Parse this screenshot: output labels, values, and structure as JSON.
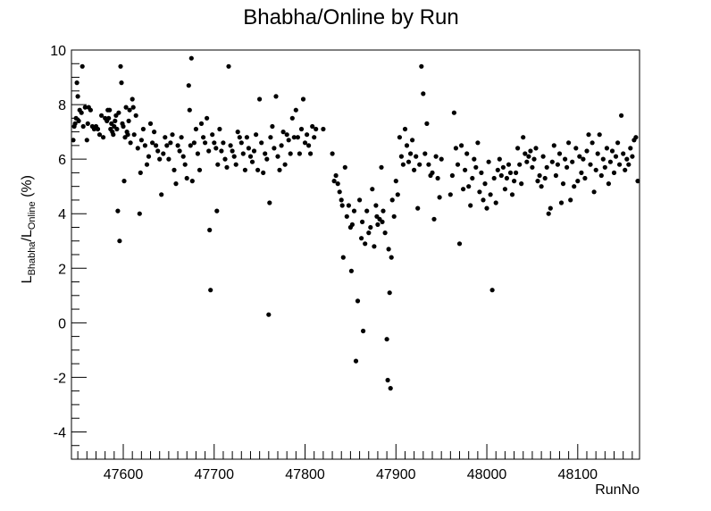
{
  "chart_data": {
    "type": "scatter",
    "title": "Bhabha/Online by Run",
    "xlabel": "RunNo",
    "ylabel": {
      "prefix": "L",
      "sub1": "Bhabha",
      "mid": "/L",
      "sub2": "Online",
      "suffix": " (%)"
    },
    "xlim": [
      47543,
      48168
    ],
    "ylim": [
      -5,
      10
    ],
    "x_ticks": [
      47600,
      47700,
      47800,
      47900,
      48000,
      48100
    ],
    "y_ticks": [
      -4,
      -2,
      0,
      2,
      4,
      6,
      8,
      10
    ],
    "grid": false,
    "legend": "none",
    "marker_color": "#000000",
    "points": [
      [
        47545,
        6.7
      ],
      [
        47546,
        7.2
      ],
      [
        47547,
        7.3
      ],
      [
        47548,
        7.5
      ],
      [
        47549,
        8.8
      ],
      [
        47550,
        8.3
      ],
      [
        47551,
        7.4
      ],
      [
        47552,
        7.8
      ],
      [
        47554,
        7.7
      ],
      [
        47555,
        9.4
      ],
      [
        47556,
        7.2
      ],
      [
        47558,
        7.9
      ],
      [
        47560,
        6.7
      ],
      [
        47561,
        7.3
      ],
      [
        47562,
        7.9
      ],
      [
        47564,
        7.8
      ],
      [
        47566,
        7.2
      ],
      [
        47568,
        7.1
      ],
      [
        47570,
        7.2
      ],
      [
        47572,
        7.1
      ],
      [
        47574,
        6.9
      ],
      [
        47576,
        7.6
      ],
      [
        47578,
        6.8
      ],
      [
        47580,
        7.5
      ],
      [
        47582,
        7.4
      ],
      [
        47583,
        7.8
      ],
      [
        47584,
        7.5
      ],
      [
        47585,
        7.8
      ],
      [
        47586,
        7.1
      ],
      [
        47587,
        7.3
      ],
      [
        47588,
        7.0
      ],
      [
        47589,
        6.9
      ],
      [
        47590,
        7.2
      ],
      [
        47591,
        7.4
      ],
      [
        47592,
        7.6
      ],
      [
        47593,
        7.1
      ],
      [
        47594,
        4.1
      ],
      [
        47595,
        7.7
      ],
      [
        47596,
        3.0
      ],
      [
        47597,
        9.4
      ],
      [
        47598,
        8.8
      ],
      [
        47599,
        7.3
      ],
      [
        47600,
        7.2
      ],
      [
        47601,
        5.2
      ],
      [
        47602,
        6.8
      ],
      [
        47603,
        7.9
      ],
      [
        47604,
        7.0
      ],
      [
        47605,
        6.9
      ],
      [
        47606,
        7.4
      ],
      [
        47607,
        7.8
      ],
      [
        47608,
        6.6
      ],
      [
        47610,
        8.2
      ],
      [
        47611,
        7.9
      ],
      [
        47612,
        6.9
      ],
      [
        47614,
        7.6
      ],
      [
        47616,
        6.4
      ],
      [
        47618,
        4.0
      ],
      [
        47619,
        5.5
      ],
      [
        47620,
        6.7
      ],
      [
        47622,
        7.1
      ],
      [
        47624,
        6.5
      ],
      [
        47626,
        5.8
      ],
      [
        47628,
        6.1
      ],
      [
        47630,
        7.3
      ],
      [
        47632,
        6.6
      ],
      [
        47634,
        7.0
      ],
      [
        47636,
        6.5
      ],
      [
        47638,
        6.3
      ],
      [
        47640,
        6.0
      ],
      [
        47642,
        4.7
      ],
      [
        47644,
        6.2
      ],
      [
        47646,
        6.8
      ],
      [
        47648,
        6.5
      ],
      [
        47650,
        6.0
      ],
      [
        47652,
        6.6
      ],
      [
        47654,
        6.9
      ],
      [
        47656,
        5.6
      ],
      [
        47658,
        5.1
      ],
      [
        47660,
        6.5
      ],
      [
        47662,
        6.3
      ],
      [
        47664,
        6.8
      ],
      [
        47666,
        6.1
      ],
      [
        47668,
        5.8
      ],
      [
        47670,
        5.3
      ],
      [
        47672,
        8.7
      ],
      [
        47673,
        7.8
      ],
      [
        47674,
        6.5
      ],
      [
        47675,
        9.7
      ],
      [
        47676,
        5.2
      ],
      [
        47678,
        6.6
      ],
      [
        47680,
        7.1
      ],
      [
        47682,
        6.2
      ],
      [
        47684,
        5.6
      ],
      [
        47686,
        7.3
      ],
      [
        47688,
        6.8
      ],
      [
        47690,
        6.6
      ],
      [
        47692,
        7.5
      ],
      [
        47694,
        6.3
      ],
      [
        47695,
        3.4
      ],
      [
        47696,
        1.2
      ],
      [
        47698,
        6.9
      ],
      [
        47700,
        6.6
      ],
      [
        47702,
        6.4
      ],
      [
        47703,
        4.1
      ],
      [
        47704,
        5.8
      ],
      [
        47706,
        7.1
      ],
      [
        47708,
        6.3
      ],
      [
        47710,
        6.6
      ],
      [
        47712,
        6.0
      ],
      [
        47714,
        5.7
      ],
      [
        47716,
        9.4
      ],
      [
        47718,
        6.5
      ],
      [
        47720,
        6.3
      ],
      [
        47722,
        6.1
      ],
      [
        47724,
        5.8
      ],
      [
        47726,
        7.0
      ],
      [
        47728,
        6.8
      ],
      [
        47730,
        6.6
      ],
      [
        47732,
        6.2
      ],
      [
        47734,
        5.6
      ],
      [
        47736,
        6.8
      ],
      [
        47738,
        6.4
      ],
      [
        47740,
        6.1
      ],
      [
        47742,
        5.9
      ],
      [
        47744,
        6.3
      ],
      [
        47746,
        6.9
      ],
      [
        47748,
        5.6
      ],
      [
        47750,
        8.2
      ],
      [
        47752,
        6.6
      ],
      [
        47754,
        5.5
      ],
      [
        47756,
        6.2
      ],
      [
        47758,
        6.0
      ],
      [
        47760,
        0.3
      ],
      [
        47761,
        4.4
      ],
      [
        47762,
        6.8
      ],
      [
        47764,
        7.2
      ],
      [
        47766,
        6.4
      ],
      [
        47768,
        8.3
      ],
      [
        47770,
        6.1
      ],
      [
        47772,
        5.6
      ],
      [
        47774,
        6.5
      ],
      [
        47776,
        7.0
      ],
      [
        47778,
        5.8
      ],
      [
        47780,
        6.9
      ],
      [
        47782,
        6.7
      ],
      [
        47784,
        6.2
      ],
      [
        47786,
        7.5
      ],
      [
        47788,
        6.8
      ],
      [
        47790,
        7.8
      ],
      [
        47792,
        6.8
      ],
      [
        47794,
        6.2
      ],
      [
        47796,
        7.1
      ],
      [
        47798,
        8.2
      ],
      [
        47800,
        6.6
      ],
      [
        47802,
        6.9
      ],
      [
        47804,
        6.5
      ],
      [
        47806,
        6.2
      ],
      [
        47808,
        7.2
      ],
      [
        47810,
        6.8
      ],
      [
        47812,
        7.1
      ],
      [
        47820,
        7.1
      ],
      [
        47830,
        6.2
      ],
      [
        47832,
        5.2
      ],
      [
        47834,
        5.4
      ],
      [
        47836,
        5.1
      ],
      [
        47838,
        4.8
      ],
      [
        47840,
        4.5
      ],
      [
        47841,
        4.3
      ],
      [
        47842,
        2.4
      ],
      [
        47844,
        5.7
      ],
      [
        47846,
        3.9
      ],
      [
        47848,
        4.3
      ],
      [
        47850,
        3.5
      ],
      [
        47851,
        1.9
      ],
      [
        47852,
        3.6
      ],
      [
        47854,
        4.1
      ],
      [
        47856,
        -1.4
      ],
      [
        47858,
        0.8
      ],
      [
        47860,
        4.5
      ],
      [
        47862,
        3.1
      ],
      [
        47863,
        3.7
      ],
      [
        47864,
        -0.3
      ],
      [
        47866,
        2.9
      ],
      [
        47868,
        4.1
      ],
      [
        47870,
        3.3
      ],
      [
        47872,
        3.5
      ],
      [
        47874,
        4.9
      ],
      [
        47876,
        2.8
      ],
      [
        47878,
        4.3
      ],
      [
        47879,
        3.9
      ],
      [
        47880,
        3.6
      ],
      [
        47882,
        3.8
      ],
      [
        47884,
        5.7
      ],
      [
        47885,
        3.7
      ],
      [
        47886,
        4.1
      ],
      [
        47888,
        3.3
      ],
      [
        47890,
        -0.6
      ],
      [
        47891,
        -2.1
      ],
      [
        47892,
        2.7
      ],
      [
        47893,
        1.1
      ],
      [
        47894,
        -2.4
      ],
      [
        47895,
        2.4
      ],
      [
        47896,
        4.5
      ],
      [
        47898,
        3.9
      ],
      [
        47900,
        5.2
      ],
      [
        47902,
        4.7
      ],
      [
        47904,
        6.8
      ],
      [
        47906,
        6.1
      ],
      [
        47908,
        5.8
      ],
      [
        47910,
        7.1
      ],
      [
        47912,
        6.5
      ],
      [
        47914,
        5.9
      ],
      [
        47916,
        6.2
      ],
      [
        47918,
        6.7
      ],
      [
        47920,
        5.6
      ],
      [
        47922,
        6.1
      ],
      [
        47924,
        4.2
      ],
      [
        47926,
        5.8
      ],
      [
        47928,
        9.4
      ],
      [
        47930,
        8.4
      ],
      [
        47932,
        6.2
      ],
      [
        47934,
        7.3
      ],
      [
        47936,
        5.8
      ],
      [
        47938,
        5.4
      ],
      [
        47940,
        5.5
      ],
      [
        47942,
        3.8
      ],
      [
        47944,
        6.1
      ],
      [
        47946,
        5.3
      ],
      [
        47948,
        4.6
      ],
      [
        47950,
        6.0
      ],
      [
        47960,
        4.7
      ],
      [
        47962,
        5.4
      ],
      [
        47964,
        7.7
      ],
      [
        47966,
        6.4
      ],
      [
        47968,
        5.8
      ],
      [
        47970,
        2.9
      ],
      [
        47972,
        6.5
      ],
      [
        47974,
        4.9
      ],
      [
        47976,
        5.6
      ],
      [
        47978,
        6.2
      ],
      [
        47980,
        5.0
      ],
      [
        47982,
        4.3
      ],
      [
        47984,
        5.3
      ],
      [
        47986,
        6.0
      ],
      [
        47988,
        5.7
      ],
      [
        47990,
        6.6
      ],
      [
        47992,
        4.8
      ],
      [
        47994,
        5.5
      ],
      [
        47996,
        4.5
      ],
      [
        47998,
        5.1
      ],
      [
        48000,
        4.2
      ],
      [
        48002,
        5.9
      ],
      [
        48004,
        4.7
      ],
      [
        48006,
        1.2
      ],
      [
        48008,
        5.3
      ],
      [
        48010,
        4.4
      ],
      [
        48012,
        5.6
      ],
      [
        48014,
        6.0
      ],
      [
        48016,
        5.4
      ],
      [
        48018,
        5.7
      ],
      [
        48020,
        4.9
      ],
      [
        48022,
        5.3
      ],
      [
        48024,
        5.8
      ],
      [
        48026,
        5.5
      ],
      [
        48028,
        4.7
      ],
      [
        48030,
        5.2
      ],
      [
        48032,
        5.5
      ],
      [
        48034,
        6.4
      ],
      [
        48036,
        5.8
      ],
      [
        48038,
        5.1
      ],
      [
        48040,
        6.8
      ],
      [
        48042,
        6.2
      ],
      [
        48044,
        5.9
      ],
      [
        48046,
        6.1
      ],
      [
        48048,
        6.3
      ],
      [
        48050,
        5.7
      ],
      [
        48052,
        6.0
      ],
      [
        48054,
        6.4
      ],
      [
        48056,
        5.2
      ],
      [
        48058,
        5.4
      ],
      [
        48060,
        5.0
      ],
      [
        48062,
        6.1
      ],
      [
        48064,
        5.3
      ],
      [
        48066,
        5.7
      ],
      [
        48068,
        4.0
      ],
      [
        48070,
        4.2
      ],
      [
        48072,
        5.9
      ],
      [
        48074,
        6.5
      ],
      [
        48076,
        5.4
      ],
      [
        48078,
        5.8
      ],
      [
        48080,
        6.2
      ],
      [
        48082,
        4.4
      ],
      [
        48084,
        5.1
      ],
      [
        48086,
        6.0
      ],
      [
        48088,
        5.7
      ],
      [
        48090,
        6.6
      ],
      [
        48092,
        4.5
      ],
      [
        48094,
        5.9
      ],
      [
        48096,
        5.0
      ],
      [
        48098,
        6.4
      ],
      [
        48100,
        5.2
      ],
      [
        48102,
        6.1
      ],
      [
        48104,
        5.5
      ],
      [
        48106,
        6.0
      ],
      [
        48108,
        5.3
      ],
      [
        48110,
        6.3
      ],
      [
        48112,
        6.9
      ],
      [
        48114,
        5.8
      ],
      [
        48116,
        6.6
      ],
      [
        48118,
        4.8
      ],
      [
        48120,
        5.6
      ],
      [
        48122,
        6.2
      ],
      [
        48124,
        6.9
      ],
      [
        48126,
        5.4
      ],
      [
        48128,
        6.0
      ],
      [
        48130,
        5.7
      ],
      [
        48132,
        6.4
      ],
      [
        48134,
        5.1
      ],
      [
        48136,
        5.9
      ],
      [
        48138,
        6.3
      ],
      [
        48140,
        5.5
      ],
      [
        48142,
        6.1
      ],
      [
        48144,
        6.6
      ],
      [
        48146,
        5.8
      ],
      [
        48148,
        7.6
      ],
      [
        48150,
        6.2
      ],
      [
        48152,
        5.6
      ],
      [
        48154,
        6.0
      ],
      [
        48156,
        5.8
      ],
      [
        48158,
        6.4
      ],
      [
        48160,
        6.1
      ],
      [
        48162,
        6.7
      ],
      [
        48164,
        6.8
      ],
      [
        48166,
        5.2
      ]
    ]
  }
}
